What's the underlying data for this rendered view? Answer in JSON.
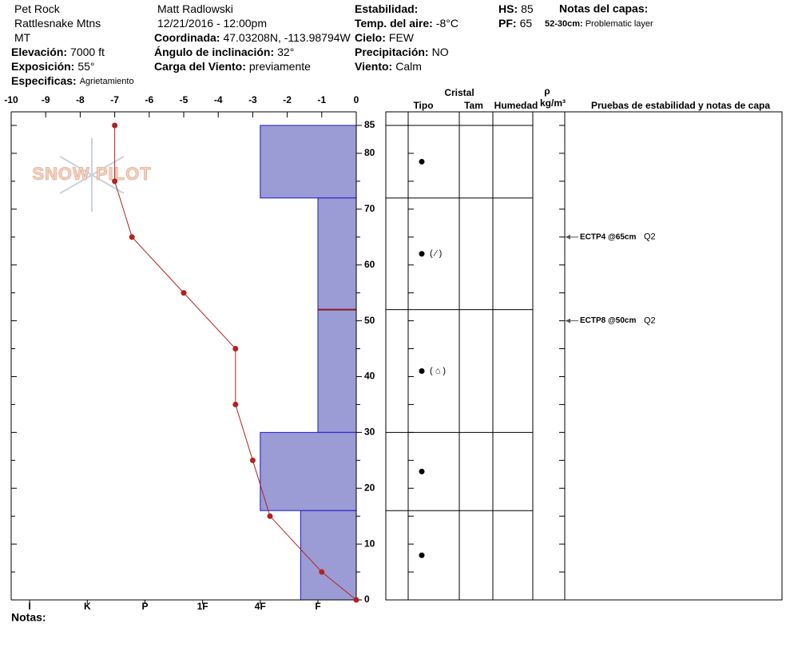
{
  "header": {
    "col1": [
      {
        "value": "Pet Rock"
      },
      {
        "value": "Rattlesnake Mtns"
      },
      {
        "value": "MT"
      },
      {
        "label": "Elevación:",
        "value": "7000 ft"
      },
      {
        "label": "Exposición:",
        "value": "55°"
      },
      {
        "label": "Especificas:",
        "value": "Agrietamiento"
      }
    ],
    "col2": [
      {
        "value": "Matt Radlowski"
      },
      {
        "value": "12/21/2016 - 12:00pm"
      },
      {
        "label": "Coordinada:",
        "value": "47.03208N, -113.98794W"
      },
      {
        "label": "Ángulo de inclinación:",
        "value": "32°"
      },
      {
        "label": "Carga del Viento:",
        "value": "previamente"
      }
    ],
    "col3": [
      {
        "label": "Estabilidad:"
      },
      {
        "label": "Temp. del aire:",
        "value": "-8°C"
      },
      {
        "label": "Cielo:",
        "value": "FEW"
      },
      {
        "label": "Precipitación:",
        "value": "NO"
      },
      {
        "label": "Viento:",
        "value": "Calm"
      }
    ],
    "col4": [
      {
        "label": "HS:",
        "value": "85"
      },
      {
        "label": "PF:",
        "value": "65"
      }
    ],
    "notes_title": "Notas del capas:",
    "notes": [
      {
        "label": "52-30cm:",
        "value": "Problematic layer"
      }
    ]
  },
  "logo": "SNOW PILOT",
  "footer": "Notas:",
  "profile": {
    "xlim": [
      -10,
      0
    ],
    "xticks": [
      -10,
      -9,
      -8,
      -7,
      -6,
      -5,
      -4,
      -3,
      -2,
      -1,
      0
    ],
    "ylim": [
      0,
      85
    ],
    "yticks": [
      0,
      10,
      20,
      30,
      40,
      50,
      60,
      70,
      80,
      85
    ],
    "minor_yticks": [
      5,
      15,
      25,
      35,
      45,
      55,
      65,
      75
    ],
    "temperature": {
      "color": "#b22222",
      "depths": [
        85,
        75,
        65,
        55,
        45,
        35,
        25,
        15,
        5,
        0
      ],
      "temps": [
        -7,
        -7,
        -6.5,
        -5,
        -3.5,
        -3.5,
        -3,
        -2.5,
        -1,
        0
      ]
    },
    "hardness_xlim": [
      6.32,
      0.335
    ],
    "hardness_ticks": [
      {
        "value": 6,
        "label": "I"
      },
      {
        "value": 5,
        "label": "K"
      },
      {
        "value": 4,
        "label": "P"
      },
      {
        "value": 3,
        "label": "1F"
      },
      {
        "value": 2,
        "label": "4F"
      },
      {
        "value": 1,
        "label": "F"
      }
    ],
    "layers": {
      "color": "#9b9bd6",
      "boundaries": [
        85,
        72,
        52,
        30,
        16,
        0
      ],
      "hardness": [
        2,
        1,
        1,
        2,
        1.3
      ]
    },
    "marked_interface": {
      "depth": 52,
      "color": "#8b1a1a"
    }
  },
  "table": {
    "headers": {
      "crystal": "Cristal",
      "type": "Tipo",
      "size": "Tam",
      "moisture": "Humedad",
      "rho": "ρ",
      "density": "kg/m³",
      "tests": "Pruebas de estabilidad y notas de capa"
    },
    "grains": [
      {
        "depth": 78.5
      },
      {
        "depth": 62,
        "symbol": "( ⁄ )"
      },
      {
        "depth": 41,
        "symbol": "( ⌂ )"
      },
      {
        "depth": 23
      },
      {
        "depth": 8
      }
    ],
    "tests": [
      {
        "depth": 65,
        "label": "ECTP4 @65cm",
        "quality": "Q2"
      },
      {
        "depth": 50,
        "label": "ECTP8 @50cm",
        "quality": "Q2"
      }
    ]
  }
}
